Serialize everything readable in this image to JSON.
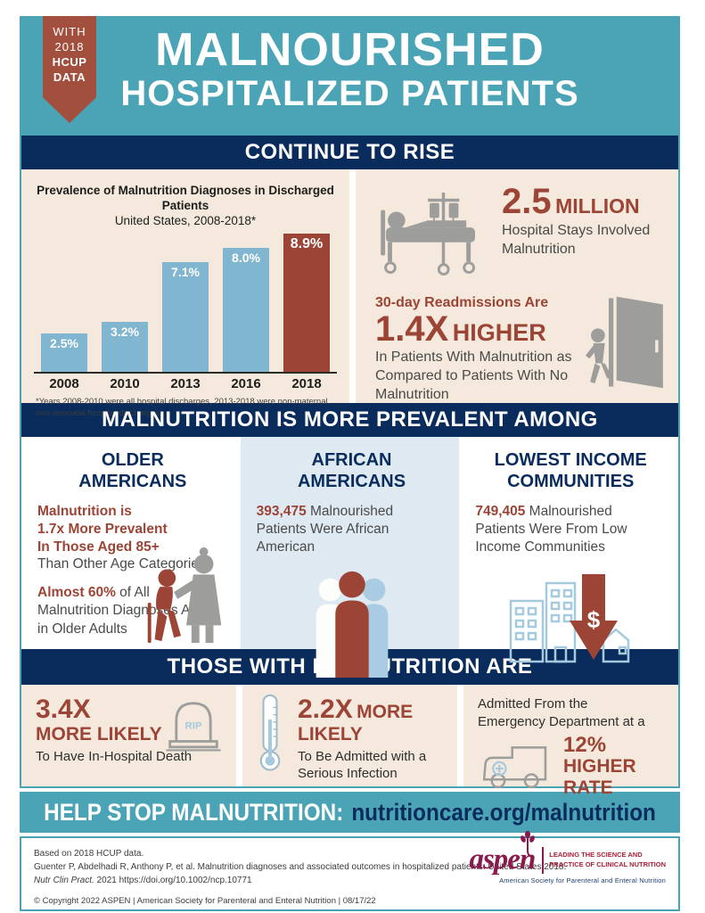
{
  "colors": {
    "teal": "#4BA4B6",
    "navy": "#092C5C",
    "beige": "#F4E9DC",
    "brick": "#9C4435",
    "brick_badge": "#A34F3E",
    "light_blue_bg": "#DEE9F2",
    "bar_blue": "#80B6D0",
    "gray_icon": "#9D9D9C",
    "outline_blue": "#A5CADF",
    "plum": "#8A1A4D"
  },
  "badge": {
    "line1": "WITH",
    "line2": "2018",
    "line3": "HCUP",
    "line4": "DATA"
  },
  "header": {
    "title_line1": "MALNOURISHED",
    "title_line2": "HOSPITALIZED PATIENTS"
  },
  "banners": {
    "rise": "CONTINUE TO RISE",
    "prevalent": "MALNUTRITION IS MORE PREVALENT AMONG",
    "outcomes": "THOSE WITH MALNUTRITION ARE"
  },
  "chart_data": {
    "type": "bar",
    "title": "Prevalence of Malnutrition Diagnoses in Discharged Patients",
    "subtitle": "United States, 2008-2018*",
    "categories": [
      "2008",
      "2010",
      "2013",
      "2016",
      "2018"
    ],
    "values": [
      2.5,
      3.2,
      7.1,
      8.0,
      8.9
    ],
    "labels": [
      "2.5%",
      "3.2%",
      "7.1%",
      "8.0%",
      "8.9%"
    ],
    "ylim": [
      0,
      9.2
    ],
    "grid": false,
    "bar_color": "#80B6D0",
    "highlight_index": 4,
    "highlight_color": "#9C4435",
    "footnote": "*Years 2008-2010 were all hospital discharges, 2013-2018 were non-maternal, non-neonatal hospital discharges."
  },
  "rise_stats": {
    "stat1": {
      "value": "2.5",
      "unit": "MILLION",
      "desc": "Hospital Stays Involved Malnutrition"
    },
    "stat2": {
      "intro": "30-day Readmissions Are",
      "value": "1.4X",
      "unit": "HIGHER",
      "desc": "In Patients With Malnutrition as Compared to Patients With No Malnutrition"
    }
  },
  "prevalent": {
    "col1": {
      "heading_line1": "OLDER",
      "heading_line2": "AMERICANS",
      "stat1_lines": [
        "Malnutrition is",
        "1.7x More Prevalent",
        "In Those Aged 85+"
      ],
      "stat1_rest": "Than Other Age Categories",
      "stat2_highlight": "Almost 60%",
      "stat2_rest": " of All Malnutrition Diagnoses Are in Older Adults"
    },
    "col2": {
      "heading_line1": "AFRICAN",
      "heading_line2": "AMERICANS",
      "stat_highlight": "393,475",
      "stat_rest": " Malnourished Patients Were African American"
    },
    "col3": {
      "heading_line1": "LOWEST INCOME",
      "heading_line2": "COMMUNITIES",
      "stat_highlight": "749,405",
      "stat_rest": " Malnourished Patients Were From Low Income Communities",
      "dollar_sign": "$"
    }
  },
  "outcomes": {
    "col1": {
      "value": "3.4X",
      "value2": "MORE LIKELY",
      "desc": "To Have In-Hospital Death",
      "rip": "RIP"
    },
    "col2": {
      "value": "2.2X",
      "value2": "MORE LIKELY",
      "desc": "To Be Admitted with a Serious Infection"
    },
    "col3": {
      "intro": "Admitted From the Emergency Department at a",
      "value": "12%",
      "value2": "HIGHER RATE"
    }
  },
  "cta": {
    "label": "HELP STOP MALNUTRITION:",
    "link": "nutritioncare.org/malnutrition"
  },
  "footer": {
    "line1": "Based on 2018 HCUP data.",
    "line2": "Guenter P, Abdelhadi R, Anthony P, et al. Malnutrition diagnoses and associated outcomes in hospitalized patients: United States 2018.",
    "line3_italic": "Nutr Clin Pract.",
    "line3_rest": " 2021  https://doi.org/10.1002/ncp.10771",
    "copyright": "© Copyright 2022 ASPEN  |  American Society for Parenteral and Enteral Nutrition  |  08/17/22",
    "logo": {
      "name": "aspen",
      "tagline1": "LEADING THE SCIENCE AND",
      "tagline2": "PRACTICE OF CLINICAL NUTRITION",
      "subline": "American Society for Parenteral and Enteral Nutrition"
    }
  }
}
